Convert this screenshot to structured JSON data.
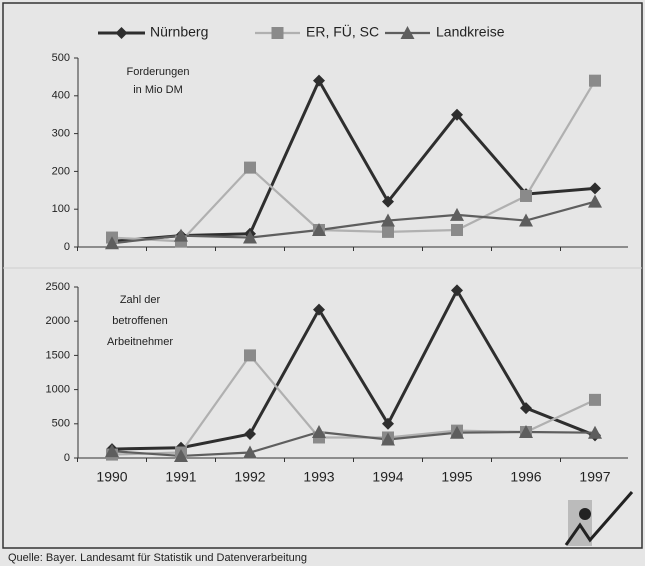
{
  "chart_data": [
    {
      "type": "line",
      "annotation": [
        "Forderungen",
        "in Mio DM"
      ],
      "ylim": [
        0,
        500
      ],
      "yticks": [
        0,
        100,
        200,
        300,
        400,
        500
      ],
      "series": [
        {
          "name": "Nürnberg",
          "color": "#2e2e2e",
          "marker": "diamond",
          "values": [
            15,
            30,
            35,
            440,
            120,
            350,
            140,
            155
          ]
        },
        {
          "name": "ER, FÜ, SC",
          "color": "#b0b0b0",
          "marker": "square",
          "values": [
            25,
            15,
            210,
            45,
            40,
            45,
            135,
            440
          ]
        },
        {
          "name": "Landkreise",
          "color": "#5e5e5e",
          "marker": "triangle",
          "values": [
            10,
            30,
            25,
            45,
            70,
            85,
            70,
            120
          ]
        }
      ]
    },
    {
      "type": "line",
      "annotation": [
        "Zahl der",
        "betroffenen",
        "Arbeitnehmer"
      ],
      "categories": [
        "1990",
        "1991",
        "1992",
        "1993",
        "1994",
        "1995",
        "1996",
        "1997"
      ],
      "ylim": [
        0,
        2500
      ],
      "yticks": [
        0,
        500,
        1000,
        1500,
        2000,
        2500
      ],
      "series": [
        {
          "color": "#2e2e2e",
          "marker": "diamond",
          "values": [
            130,
            150,
            350,
            2170,
            500,
            2450,
            730,
            330
          ]
        },
        {
          "color": "#b0b0b0",
          "marker": "square",
          "values": [
            50,
            80,
            1500,
            300,
            300,
            400,
            380,
            850
          ]
        },
        {
          "color": "#5e5e5e",
          "marker": "triangle",
          "values": [
            100,
            30,
            80,
            380,
            270,
            370,
            380,
            370
          ]
        }
      ]
    }
  ],
  "source": "Quelle: Bayer. Landesamt für Statistik und Datenverarbeitung"
}
